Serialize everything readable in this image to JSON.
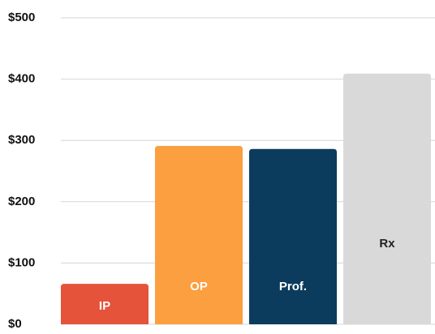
{
  "chart_data": {
    "type": "bar",
    "categories": [
      "IP",
      "OP",
      "Prof.",
      "Rx"
    ],
    "values": [
      66,
      291,
      286,
      409
    ],
    "colors": [
      "#e4533a",
      "#fb9f40",
      "#0b3c5d",
      "#d9d9d9"
    ],
    "ylim": [
      0,
      500
    ],
    "yticks": [
      {
        "value": 0,
        "label": "$0"
      },
      {
        "value": 100,
        "label": "$100"
      },
      {
        "value": 200,
        "label": "$200"
      },
      {
        "value": 300,
        "label": "$300"
      },
      {
        "value": 400,
        "label": "$400"
      },
      {
        "value": 500,
        "label": "$500"
      }
    ],
    "grid": true
  }
}
